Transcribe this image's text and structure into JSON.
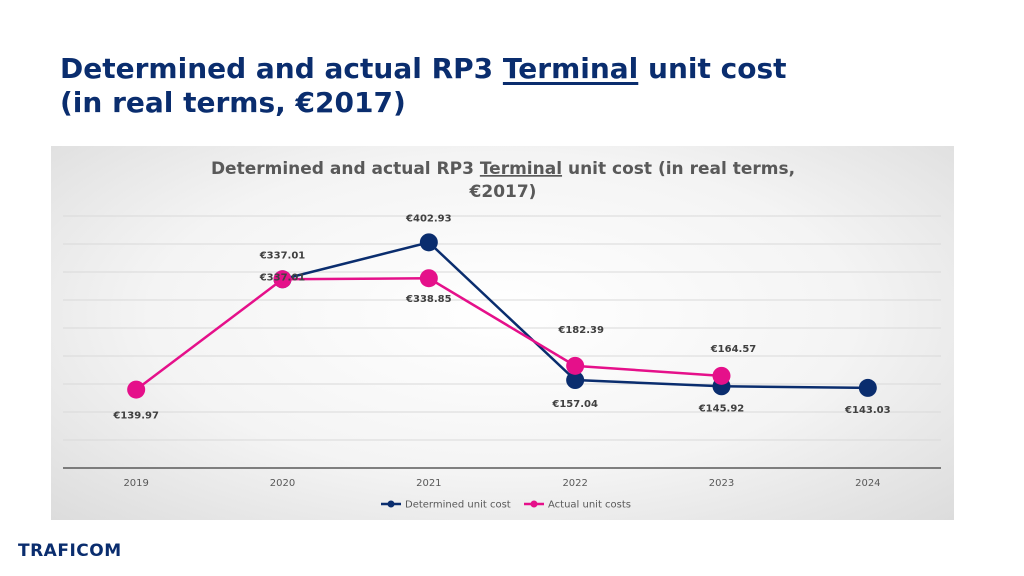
{
  "page": {
    "title_line1_pre": "Determined and actual RP3 ",
    "title_line1_u": "Terminal",
    "title_line1_post": " unit cost",
    "title_line2": "(in real terms, €2017)"
  },
  "logo": {
    "text": "TRAFICOM"
  },
  "colors": {
    "determined": "#0a2d6e",
    "actual": "#e5108a",
    "title": "#0a2d6e"
  },
  "chart_data": {
    "type": "line",
    "title_pre": "Determined and actual RP3 ",
    "title_u": "Terminal",
    "title_post": " unit cost (in real terms,",
    "title_line2": "€2017)",
    "categories": [
      "2019",
      "2020",
      "2021",
      "2022",
      "2023",
      "2024"
    ],
    "ylim": [
      0,
      450
    ],
    "grid": true,
    "legend": "bottom",
    "series": [
      {
        "name": "Determined unit cost",
        "color": "#0a2d6e",
        "values": [
          null,
          337.01,
          402.93,
          157.04,
          145.92,
          143.03
        ],
        "labels": [
          null,
          "€337.01",
          "€402.93",
          "€157.04",
          "€145.92",
          "€143.03"
        ]
      },
      {
        "name": "Actual unit costs",
        "color": "#e5108a",
        "values": [
          139.97,
          337.01,
          338.85,
          182.39,
          164.57,
          null
        ],
        "labels": [
          "€139.97",
          "€337.01",
          "€338.85",
          "€182.39",
          "€164.57",
          null
        ]
      }
    ]
  }
}
